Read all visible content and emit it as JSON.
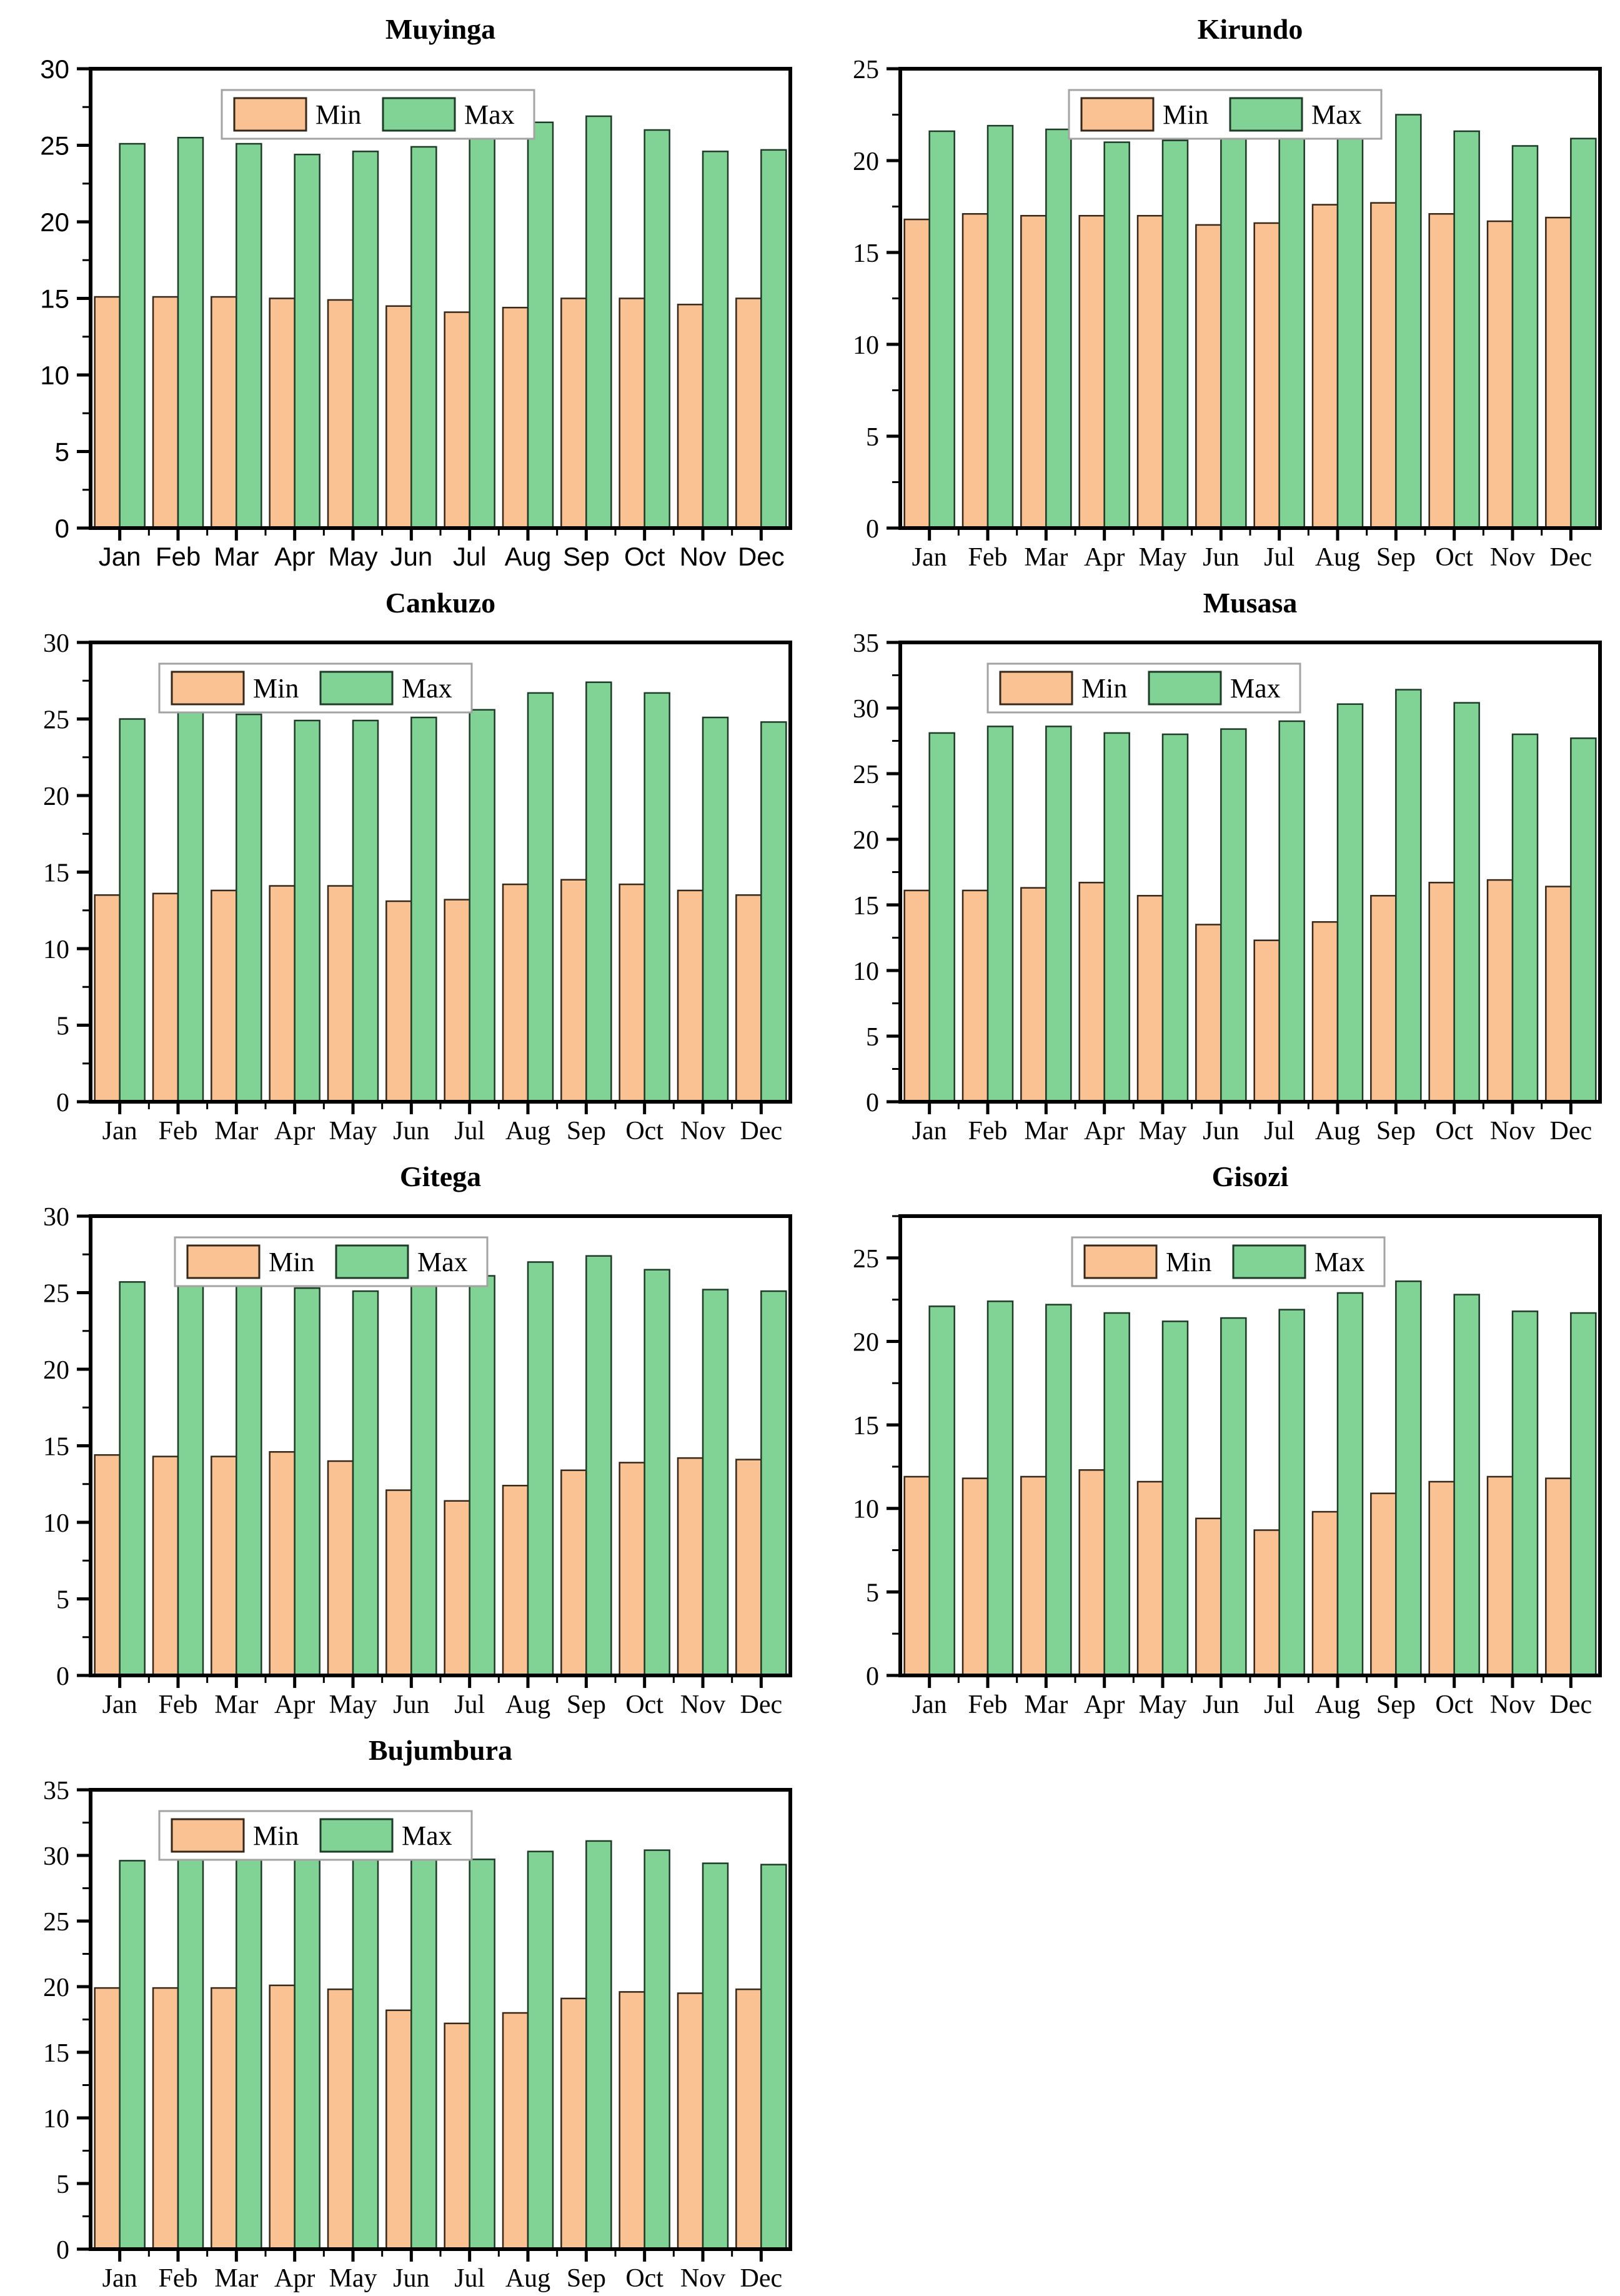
{
  "page": {
    "background": "#FFFFFF"
  },
  "colors": {
    "min_fill": "#FAC192",
    "max_fill": "#81D395",
    "min_edge": "#35281A",
    "max_edge": "#1E3B28",
    "frame": "#000000",
    "tick": "#000000",
    "legend_border": "#A3A3A3",
    "legend_bg": "#FFFFFF",
    "text": "#000000"
  },
  "legend": {
    "min_label": "Min",
    "max_label": "Max"
  },
  "chart_data": [
    {
      "type": "bar",
      "title": "Muyinga",
      "categories": [
        "Jan",
        "Feb",
        "Mar",
        "Apr",
        "May",
        "Jun",
        "Jul",
        "Aug",
        "Sep",
        "Oct",
        "Nov",
        "Dec"
      ],
      "series": [
        {
          "name": "Min",
          "values": [
            15.1,
            15.1,
            15.1,
            15.0,
            14.9,
            14.5,
            14.1,
            14.4,
            15.0,
            15.0,
            14.6,
            15.0
          ]
        },
        {
          "name": "Max",
          "values": [
            25.1,
            25.5,
            25.1,
            24.4,
            24.6,
            24.9,
            25.7,
            26.5,
            26.9,
            26.0,
            24.6,
            24.7
          ]
        }
      ],
      "ylim": [
        0,
        30
      ],
      "yticks": [
        0,
        5,
        10,
        15,
        20,
        25,
        30
      ],
      "grid": false,
      "legend_position": "top-center",
      "legend_dx": -100,
      "axis_font": "sans"
    },
    {
      "type": "bar",
      "title": "Kirundo",
      "categories": [
        "Jan",
        "Feb",
        "Mar",
        "Apr",
        "May",
        "Jun",
        "Jul",
        "Aug",
        "Sep",
        "Oct",
        "Nov",
        "Dec"
      ],
      "series": [
        {
          "name": "Min",
          "values": [
            16.8,
            17.1,
            17.0,
            17.0,
            17.0,
            16.5,
            16.6,
            17.6,
            17.7,
            17.1,
            16.7,
            16.9
          ]
        },
        {
          "name": "Max",
          "values": [
            21.6,
            21.9,
            21.7,
            21.0,
            21.1,
            21.4,
            21.9,
            22.7,
            22.5,
            21.6,
            20.8,
            21.2
          ]
        }
      ],
      "ylim": [
        0,
        25
      ],
      "yticks": [
        0,
        5,
        10,
        15,
        20,
        25
      ],
      "grid": false,
      "legend_position": "top-center",
      "legend_dx": -40,
      "axis_font": "serif"
    },
    {
      "type": "bar",
      "title": "Cankuzo",
      "categories": [
        "Jan",
        "Feb",
        "Mar",
        "Apr",
        "May",
        "Jun",
        "Jul",
        "Aug",
        "Sep",
        "Oct",
        "Nov",
        "Dec"
      ],
      "series": [
        {
          "name": "Min",
          "values": [
            13.5,
            13.6,
            13.8,
            14.1,
            14.1,
            13.1,
            13.2,
            14.2,
            14.5,
            14.2,
            13.8,
            13.5
          ]
        },
        {
          "name": "Max",
          "values": [
            25.0,
            25.5,
            25.3,
            24.9,
            24.9,
            25.1,
            25.6,
            26.7,
            27.4,
            26.7,
            25.1,
            24.8
          ]
        }
      ],
      "ylim": [
        0,
        30
      ],
      "yticks": [
        0,
        5,
        10,
        15,
        20,
        25,
        30
      ],
      "grid": false,
      "legend_position": "top-center",
      "legend_dx": -200,
      "axis_font": "serif"
    },
    {
      "type": "bar",
      "title": "Musasa",
      "categories": [
        "Jan",
        "Feb",
        "Mar",
        "Apr",
        "May",
        "Jun",
        "Jul",
        "Aug",
        "Sep",
        "Oct",
        "Nov",
        "Dec"
      ],
      "series": [
        {
          "name": "Min",
          "values": [
            16.1,
            16.1,
            16.3,
            16.7,
            15.7,
            13.5,
            12.3,
            13.7,
            15.7,
            16.7,
            16.9,
            16.4
          ]
        },
        {
          "name": "Max",
          "values": [
            28.1,
            28.6,
            28.6,
            28.1,
            28.0,
            28.4,
            29.0,
            30.3,
            31.4,
            30.4,
            28.0,
            27.7
          ]
        }
      ],
      "ylim": [
        0,
        35
      ],
      "yticks": [
        0,
        5,
        10,
        15,
        20,
        25,
        30,
        35
      ],
      "grid": false,
      "legend_position": "top-center",
      "legend_dx": -170,
      "axis_font": "serif"
    },
    {
      "type": "bar",
      "title": "Gitega",
      "categories": [
        "Jan",
        "Feb",
        "Mar",
        "Apr",
        "May",
        "Jun",
        "Jul",
        "Aug",
        "Sep",
        "Oct",
        "Nov",
        "Dec"
      ],
      "series": [
        {
          "name": "Min",
          "values": [
            14.4,
            14.3,
            14.3,
            14.6,
            14.0,
            12.1,
            11.4,
            12.4,
            13.4,
            13.9,
            14.2,
            14.1
          ]
        },
        {
          "name": "Max",
          "values": [
            25.7,
            26.0,
            25.8,
            25.3,
            25.1,
            25.5,
            26.1,
            27.0,
            27.4,
            26.5,
            25.2,
            25.1
          ]
        }
      ],
      "ylim": [
        0,
        30
      ],
      "yticks": [
        0,
        5,
        10,
        15,
        20,
        25,
        30
      ],
      "grid": false,
      "legend_position": "top-center",
      "legend_dx": -175,
      "axis_font": "serif"
    },
    {
      "type": "bar",
      "title": "Gisozi",
      "categories": [
        "Jan",
        "Feb",
        "Mar",
        "Apr",
        "May",
        "Jun",
        "Jul",
        "Aug",
        "Sep",
        "Oct",
        "Nov",
        "Dec"
      ],
      "series": [
        {
          "name": "Min",
          "values": [
            11.9,
            11.8,
            11.9,
            12.3,
            11.6,
            9.4,
            8.7,
            9.8,
            10.9,
            11.6,
            11.9,
            11.8
          ]
        },
        {
          "name": "Max",
          "values": [
            22.1,
            22.4,
            22.2,
            21.7,
            21.2,
            21.4,
            21.9,
            22.9,
            23.6,
            22.8,
            21.8,
            21.7
          ]
        }
      ],
      "ylim": [
        0,
        27.5
      ],
      "yticks": [
        0,
        5,
        10,
        15,
        20,
        25
      ],
      "grid": false,
      "legend_position": "top-center",
      "legend_dx": -35,
      "axis_font": "serif"
    },
    {
      "type": "bar",
      "title": "Bujumbura",
      "categories": [
        "Jan",
        "Feb",
        "Mar",
        "Apr",
        "May",
        "Jun",
        "Jul",
        "Aug",
        "Sep",
        "Oct",
        "Nov",
        "Dec"
      ],
      "series": [
        {
          "name": "Min",
          "values": [
            19.9,
            19.9,
            19.9,
            20.1,
            19.8,
            18.2,
            17.2,
            18.0,
            19.1,
            19.6,
            19.5,
            19.8
          ]
        },
        {
          "name": "Max",
          "values": [
            29.6,
            30.0,
            29.9,
            29.8,
            30.1,
            29.9,
            29.7,
            30.3,
            31.1,
            30.4,
            29.4,
            29.3
          ]
        }
      ],
      "ylim": [
        0,
        35
      ],
      "yticks": [
        0,
        5,
        10,
        15,
        20,
        25,
        30,
        35
      ],
      "grid": false,
      "legend_position": "top-center",
      "legend_dx": -200,
      "axis_font": "serif"
    }
  ]
}
